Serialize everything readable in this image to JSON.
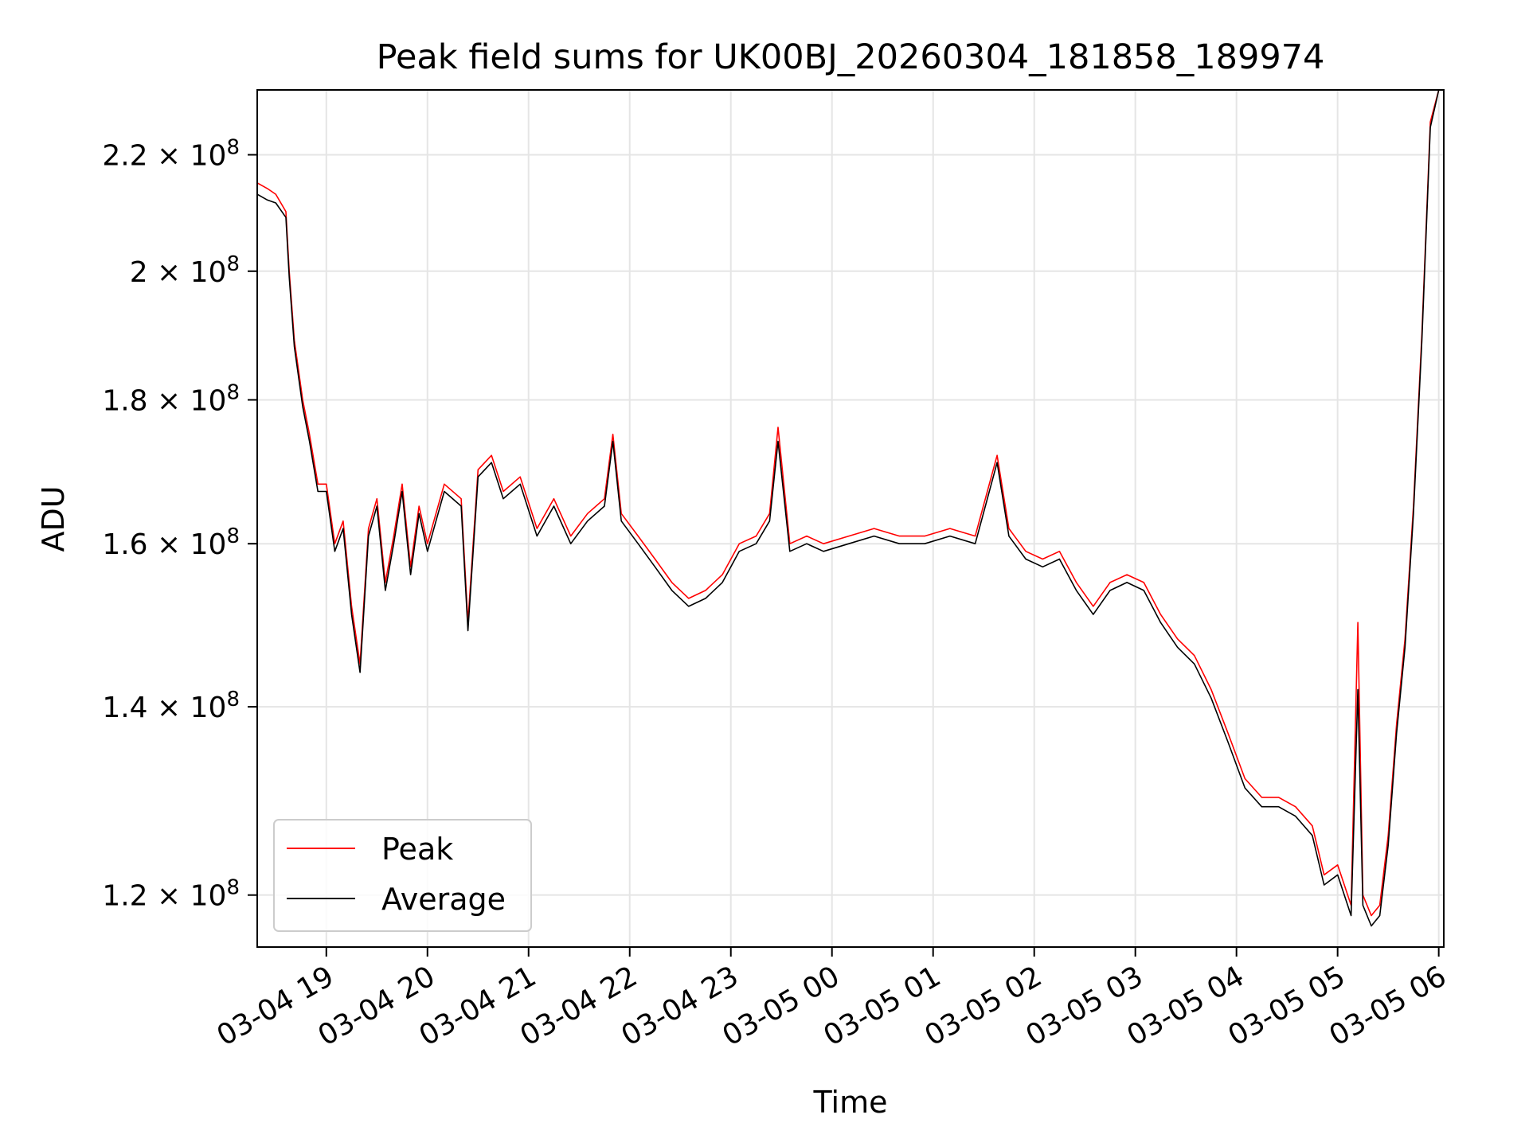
{
  "chart_data": {
    "type": "line",
    "title": "Peak field sums for UK00BJ_20260304_181858_189974",
    "xlabel": "Time",
    "ylabel": "ADU",
    "yscale": "log",
    "ylim": [
      115000000,
      232000000
    ],
    "xlim": [
      "2026-03-04 18:19",
      "2026-03-05 06:03"
    ],
    "grid": true,
    "legend_position": "lower-left",
    "x_ticks": [
      {
        "value": "2026-03-04 19:00",
        "label": "03-04 19"
      },
      {
        "value": "2026-03-04 20:00",
        "label": "03-04 20"
      },
      {
        "value": "2026-03-04 21:00",
        "label": "03-04 21"
      },
      {
        "value": "2026-03-04 22:00",
        "label": "03-04 22"
      },
      {
        "value": "2026-03-04 23:00",
        "label": "03-04 23"
      },
      {
        "value": "2026-03-05 00:00",
        "label": "03-05 00"
      },
      {
        "value": "2026-03-05 01:00",
        "label": "03-05 01"
      },
      {
        "value": "2026-03-05 02:00",
        "label": "03-05 02"
      },
      {
        "value": "2026-03-05 03:00",
        "label": "03-05 03"
      },
      {
        "value": "2026-03-05 04:00",
        "label": "03-05 04"
      },
      {
        "value": "2026-03-05 05:00",
        "label": "03-05 05"
      },
      {
        "value": "2026-03-05 06:00",
        "label": "03-05 06"
      }
    ],
    "y_ticks": [
      {
        "value": 120000000,
        "mantissa": "1.2",
        "exponent": "8"
      },
      {
        "value": 140000000,
        "mantissa": "1.4",
        "exponent": "8"
      },
      {
        "value": 160000000,
        "mantissa": "1.6",
        "exponent": "8"
      },
      {
        "value": 180000000,
        "mantissa": "1.8",
        "exponent": "8"
      },
      {
        "value": 200000000,
        "mantissa": "2",
        "exponent": "8"
      },
      {
        "value": 220000000,
        "mantissa": "2.2",
        "exponent": "8"
      }
    ],
    "series": [
      {
        "name": "Peak",
        "color": "#ff0000",
        "points": [
          [
            "2026-03-04 18:19",
            215000000
          ],
          [
            "2026-03-04 18:25",
            214000000
          ],
          [
            "2026-03-04 18:30",
            213000000
          ],
          [
            "2026-03-04 18:36",
            210000000
          ],
          [
            "2026-03-04 18:38",
            200000000
          ],
          [
            "2026-03-04 18:41",
            189000000
          ],
          [
            "2026-03-04 18:46",
            180000000
          ],
          [
            "2026-03-04 18:50",
            175000000
          ],
          [
            "2026-03-04 18:55",
            168000000
          ],
          [
            "2026-03-04 19:00",
            168000000
          ],
          [
            "2026-03-04 19:05",
            160000000
          ],
          [
            "2026-03-04 19:10",
            163000000
          ],
          [
            "2026-03-04 19:15",
            152000000
          ],
          [
            "2026-03-04 19:20",
            145000000
          ],
          [
            "2026-03-04 19:25",
            162000000
          ],
          [
            "2026-03-04 19:30",
            166000000
          ],
          [
            "2026-03-04 19:35",
            155000000
          ],
          [
            "2026-03-04 19:40",
            161000000
          ],
          [
            "2026-03-04 19:45",
            168000000
          ],
          [
            "2026-03-04 19:50",
            157000000
          ],
          [
            "2026-03-04 19:55",
            165000000
          ],
          [
            "2026-03-04 20:00",
            160000000
          ],
          [
            "2026-03-04 20:10",
            168000000
          ],
          [
            "2026-03-04 20:20",
            166000000
          ],
          [
            "2026-03-04 20:24",
            150000000
          ],
          [
            "2026-03-04 20:30",
            170000000
          ],
          [
            "2026-03-04 20:38",
            172000000
          ],
          [
            "2026-03-04 20:45",
            167000000
          ],
          [
            "2026-03-04 20:55",
            169000000
          ],
          [
            "2026-03-04 21:05",
            162000000
          ],
          [
            "2026-03-04 21:15",
            166000000
          ],
          [
            "2026-03-04 21:25",
            161000000
          ],
          [
            "2026-03-04 21:35",
            164000000
          ],
          [
            "2026-03-04 21:45",
            166000000
          ],
          [
            "2026-03-04 21:50",
            175000000
          ],
          [
            "2026-03-04 21:55",
            164000000
          ],
          [
            "2026-03-04 22:05",
            161000000
          ],
          [
            "2026-03-04 22:15",
            158000000
          ],
          [
            "2026-03-04 22:25",
            155000000
          ],
          [
            "2026-03-04 22:35",
            153000000
          ],
          [
            "2026-03-04 22:45",
            154000000
          ],
          [
            "2026-03-04 22:55",
            156000000
          ],
          [
            "2026-03-04 23:05",
            160000000
          ],
          [
            "2026-03-04 23:15",
            161000000
          ],
          [
            "2026-03-04 23:23",
            164000000
          ],
          [
            "2026-03-04 23:28",
            176000000
          ],
          [
            "2026-03-04 23:35",
            160000000
          ],
          [
            "2026-03-04 23:45",
            161000000
          ],
          [
            "2026-03-04 23:55",
            160000000
          ],
          [
            "2026-03-05 00:10",
            161000000
          ],
          [
            "2026-03-05 00:25",
            162000000
          ],
          [
            "2026-03-05 00:40",
            161000000
          ],
          [
            "2026-03-05 00:55",
            161000000
          ],
          [
            "2026-03-05 01:10",
            162000000
          ],
          [
            "2026-03-05 01:25",
            161000000
          ],
          [
            "2026-03-05 01:38",
            172000000
          ],
          [
            "2026-03-05 01:45",
            162000000
          ],
          [
            "2026-03-05 01:55",
            159000000
          ],
          [
            "2026-03-05 02:05",
            158000000
          ],
          [
            "2026-03-05 02:15",
            159000000
          ],
          [
            "2026-03-05 02:25",
            155000000
          ],
          [
            "2026-03-05 02:35",
            152000000
          ],
          [
            "2026-03-05 02:45",
            155000000
          ],
          [
            "2026-03-05 02:55",
            156000000
          ],
          [
            "2026-03-05 03:05",
            155000000
          ],
          [
            "2026-03-05 03:15",
            151000000
          ],
          [
            "2026-03-05 03:25",
            148000000
          ],
          [
            "2026-03-05 03:35",
            146000000
          ],
          [
            "2026-03-05 03:45",
            142000000
          ],
          [
            "2026-03-05 03:55",
            137000000
          ],
          [
            "2026-03-05 04:05",
            132000000
          ],
          [
            "2026-03-05 04:15",
            130000000
          ],
          [
            "2026-03-05 04:25",
            130000000
          ],
          [
            "2026-03-05 04:35",
            129000000
          ],
          [
            "2026-03-05 04:45",
            127000000
          ],
          [
            "2026-03-05 04:52",
            122000000
          ],
          [
            "2026-03-05 05:00",
            123000000
          ],
          [
            "2026-03-05 05:08",
            119000000
          ],
          [
            "2026-03-05 05:12",
            150000000
          ],
          [
            "2026-03-05 05:15",
            120000000
          ],
          [
            "2026-03-05 05:20",
            118000000
          ],
          [
            "2026-03-05 05:25",
            119000000
          ],
          [
            "2026-03-05 05:30",
            126000000
          ],
          [
            "2026-03-05 05:35",
            138000000
          ],
          [
            "2026-03-05 05:40",
            148000000
          ],
          [
            "2026-03-05 05:45",
            165000000
          ],
          [
            "2026-03-05 05:50",
            190000000
          ],
          [
            "2026-03-05 05:55",
            226000000
          ],
          [
            "2026-03-05 06:00",
            232000000
          ]
        ]
      },
      {
        "name": "Average",
        "color": "#000000",
        "points": [
          [
            "2026-03-04 18:19",
            213000000
          ],
          [
            "2026-03-04 18:25",
            212000000
          ],
          [
            "2026-03-04 18:30",
            211500000
          ],
          [
            "2026-03-04 18:36",
            209000000
          ],
          [
            "2026-03-04 18:38",
            199000000
          ],
          [
            "2026-03-04 18:41",
            188000000
          ],
          [
            "2026-03-04 18:46",
            179000000
          ],
          [
            "2026-03-04 18:50",
            174000000
          ],
          [
            "2026-03-04 18:55",
            167000000
          ],
          [
            "2026-03-04 19:00",
            167000000
          ],
          [
            "2026-03-04 19:05",
            159000000
          ],
          [
            "2026-03-04 19:10",
            162000000
          ],
          [
            "2026-03-04 19:15",
            151000000
          ],
          [
            "2026-03-04 19:20",
            144000000
          ],
          [
            "2026-03-04 19:25",
            161000000
          ],
          [
            "2026-03-04 19:30",
            165000000
          ],
          [
            "2026-03-04 19:35",
            154000000
          ],
          [
            "2026-03-04 19:40",
            160000000
          ],
          [
            "2026-03-04 19:45",
            167000000
          ],
          [
            "2026-03-04 19:50",
            156000000
          ],
          [
            "2026-03-04 19:55",
            164000000
          ],
          [
            "2026-03-04 20:00",
            159000000
          ],
          [
            "2026-03-04 20:10",
            167000000
          ],
          [
            "2026-03-04 20:20",
            165000000
          ],
          [
            "2026-03-04 20:24",
            149000000
          ],
          [
            "2026-03-04 20:30",
            169000000
          ],
          [
            "2026-03-04 20:38",
            171000000
          ],
          [
            "2026-03-04 20:45",
            166000000
          ],
          [
            "2026-03-04 20:55",
            168000000
          ],
          [
            "2026-03-04 21:05",
            161000000
          ],
          [
            "2026-03-04 21:15",
            165000000
          ],
          [
            "2026-03-04 21:25",
            160000000
          ],
          [
            "2026-03-04 21:35",
            163000000
          ],
          [
            "2026-03-04 21:45",
            165000000
          ],
          [
            "2026-03-04 21:50",
            174000000
          ],
          [
            "2026-03-04 21:55",
            163000000
          ],
          [
            "2026-03-04 22:05",
            160000000
          ],
          [
            "2026-03-04 22:15",
            157000000
          ],
          [
            "2026-03-04 22:25",
            154000000
          ],
          [
            "2026-03-04 22:35",
            152000000
          ],
          [
            "2026-03-04 22:45",
            153000000
          ],
          [
            "2026-03-04 22:55",
            155000000
          ],
          [
            "2026-03-04 23:05",
            159000000
          ],
          [
            "2026-03-04 23:15",
            160000000
          ],
          [
            "2026-03-04 23:23",
            163000000
          ],
          [
            "2026-03-04 23:28",
            174000000
          ],
          [
            "2026-03-04 23:35",
            159000000
          ],
          [
            "2026-03-04 23:45",
            160000000
          ],
          [
            "2026-03-04 23:55",
            159000000
          ],
          [
            "2026-03-05 00:10",
            160000000
          ],
          [
            "2026-03-05 00:25",
            161000000
          ],
          [
            "2026-03-05 00:40",
            160000000
          ],
          [
            "2026-03-05 00:55",
            160000000
          ],
          [
            "2026-03-05 01:10",
            161000000
          ],
          [
            "2026-03-05 01:25",
            160000000
          ],
          [
            "2026-03-05 01:38",
            171000000
          ],
          [
            "2026-03-05 01:45",
            161000000
          ],
          [
            "2026-03-05 01:55",
            158000000
          ],
          [
            "2026-03-05 02:05",
            157000000
          ],
          [
            "2026-03-05 02:15",
            158000000
          ],
          [
            "2026-03-05 02:25",
            154000000
          ],
          [
            "2026-03-05 02:35",
            151000000
          ],
          [
            "2026-03-05 02:45",
            154000000
          ],
          [
            "2026-03-05 02:55",
            155000000
          ],
          [
            "2026-03-05 03:05",
            154000000
          ],
          [
            "2026-03-05 03:15",
            150000000
          ],
          [
            "2026-03-05 03:25",
            147000000
          ],
          [
            "2026-03-05 03:35",
            145000000
          ],
          [
            "2026-03-05 03:45",
            141000000
          ],
          [
            "2026-03-05 03:55",
            136000000
          ],
          [
            "2026-03-05 04:05",
            131000000
          ],
          [
            "2026-03-05 04:15",
            129000000
          ],
          [
            "2026-03-05 04:25",
            129000000
          ],
          [
            "2026-03-05 04:35",
            128000000
          ],
          [
            "2026-03-05 04:45",
            126000000
          ],
          [
            "2026-03-05 04:52",
            121000000
          ],
          [
            "2026-03-05 05:00",
            122000000
          ],
          [
            "2026-03-05 05:08",
            118000000
          ],
          [
            "2026-03-05 05:12",
            142000000
          ],
          [
            "2026-03-05 05:15",
            119000000
          ],
          [
            "2026-03-05 05:20",
            117000000
          ],
          [
            "2026-03-05 05:25",
            118000000
          ],
          [
            "2026-03-05 05:30",
            125000000
          ],
          [
            "2026-03-05 05:35",
            137000000
          ],
          [
            "2026-03-05 05:40",
            147000000
          ],
          [
            "2026-03-05 05:45",
            164000000
          ],
          [
            "2026-03-05 05:50",
            189000000
          ],
          [
            "2026-03-05 05:55",
            225000000
          ],
          [
            "2026-03-05 06:00",
            232000000
          ]
        ]
      }
    ]
  }
}
